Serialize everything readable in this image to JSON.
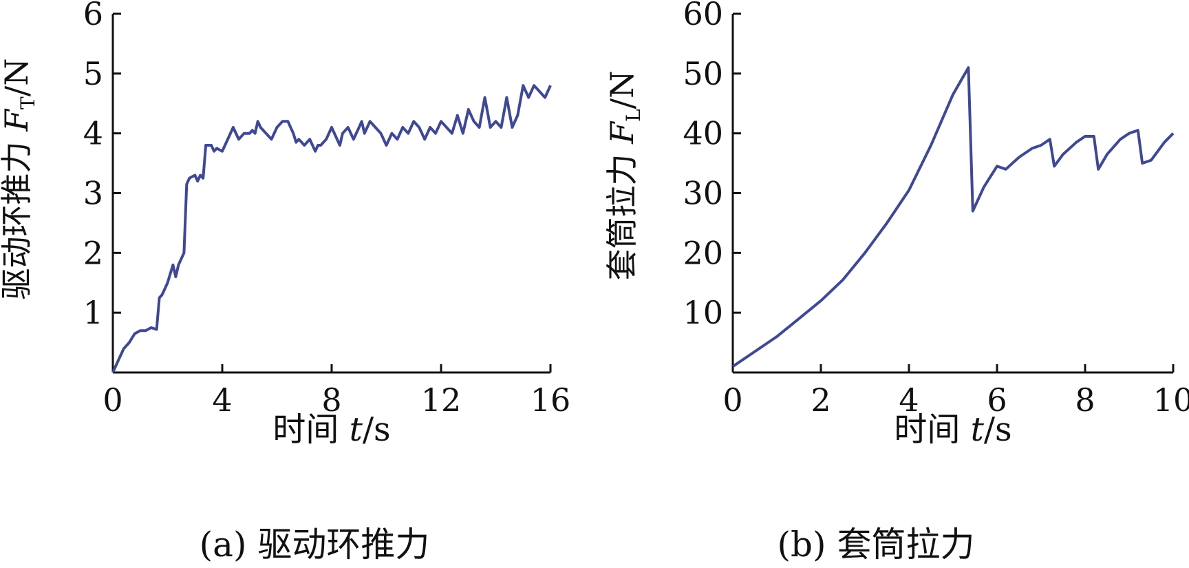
{
  "chart_data": [
    {
      "type": "line",
      "caption": "(a) 驱动环推力",
      "xlabel_cn": "时间",
      "xlabel_var": "t",
      "xlabel_unit": "/s",
      "ylabel_cn": "驱动环推力",
      "ylabel_var": "F",
      "ylabel_sub": "T",
      "ylabel_unit": "/N",
      "xlim": [
        0,
        16
      ],
      "ylim": [
        0,
        6
      ],
      "xticks": [
        0,
        4,
        8,
        12,
        16
      ],
      "yticks": [
        1,
        2,
        3,
        4,
        5,
        6
      ],
      "grid": false,
      "color": "#3f4896",
      "x": [
        0.0,
        0.2,
        0.4,
        0.6,
        0.8,
        1.0,
        1.2,
        1.4,
        1.6,
        1.7,
        1.8,
        2.0,
        2.2,
        2.3,
        2.4,
        2.6,
        2.7,
        2.8,
        3.0,
        3.1,
        3.2,
        3.3,
        3.4,
        3.6,
        3.7,
        3.8,
        4.0,
        4.1,
        4.2,
        4.4,
        4.6,
        4.8,
        5.0,
        5.1,
        5.2,
        5.3,
        5.4,
        5.6,
        5.8,
        6.0,
        6.2,
        6.4,
        6.6,
        6.7,
        6.8,
        7.0,
        7.2,
        7.4,
        7.5,
        7.6,
        7.8,
        8.0,
        8.2,
        8.3,
        8.4,
        8.6,
        8.8,
        9.0,
        9.1,
        9.2,
        9.4,
        9.6,
        9.8,
        10.0,
        10.1,
        10.2,
        10.4,
        10.6,
        10.8,
        11.0,
        11.2,
        11.4,
        11.6,
        11.8,
        12.0,
        12.2,
        12.4,
        12.6,
        12.8,
        13.0,
        13.2,
        13.4,
        13.6,
        13.8,
        14.0,
        14.2,
        14.4,
        14.6,
        14.8,
        15.0,
        15.2,
        15.4,
        15.6,
        15.8,
        16.0
      ],
      "y": [
        0.0,
        0.2,
        0.4,
        0.5,
        0.65,
        0.7,
        0.7,
        0.75,
        0.72,
        1.25,
        1.3,
        1.5,
        1.8,
        1.6,
        1.8,
        2.0,
        3.15,
        3.25,
        3.3,
        3.2,
        3.3,
        3.25,
        3.8,
        3.8,
        3.7,
        3.75,
        3.7,
        3.8,
        3.9,
        4.1,
        3.9,
        4.0,
        4.0,
        4.05,
        4.0,
        4.2,
        4.1,
        4.0,
        3.9,
        4.1,
        4.2,
        4.2,
        4.0,
        3.85,
        3.9,
        3.8,
        3.9,
        3.7,
        3.8,
        3.8,
        3.9,
        4.1,
        3.9,
        3.8,
        4.0,
        4.1,
        3.9,
        4.1,
        4.2,
        4.0,
        4.2,
        4.1,
        4.0,
        3.8,
        3.9,
        4.0,
        3.9,
        4.1,
        4.0,
        4.2,
        4.1,
        3.9,
        4.1,
        4.0,
        4.2,
        4.1,
        4.0,
        4.3,
        4.0,
        4.4,
        4.2,
        4.1,
        4.6,
        4.1,
        4.2,
        4.1,
        4.6,
        4.1,
        4.3,
        4.8,
        4.6,
        4.8,
        4.7,
        4.6,
        4.8
      ]
    },
    {
      "type": "line",
      "caption": "(b) 套筒拉力",
      "xlabel_cn": "时间",
      "xlabel_var": "t",
      "xlabel_unit": "/s",
      "ylabel_cn": "套筒拉力",
      "ylabel_var": "F",
      "ylabel_sub": "L",
      "ylabel_unit": "/N",
      "xlim": [
        0,
        10
      ],
      "ylim": [
        0,
        60
      ],
      "xticks": [
        0,
        2,
        4,
        6,
        8,
        10
      ],
      "yticks": [
        10,
        20,
        30,
        40,
        50,
        60
      ],
      "grid": false,
      "color": "#3f4896",
      "x": [
        0.0,
        0.5,
        1.0,
        1.5,
        2.0,
        2.5,
        3.0,
        3.5,
        4.0,
        4.5,
        5.0,
        5.35,
        5.45,
        5.7,
        6.0,
        6.2,
        6.5,
        6.8,
        7.0,
        7.2,
        7.3,
        7.5,
        7.8,
        8.0,
        8.2,
        8.3,
        8.5,
        8.8,
        9.0,
        9.2,
        9.3,
        9.5,
        9.8,
        10.0
      ],
      "y": [
        1.0,
        3.5,
        6.0,
        9.0,
        12.0,
        15.5,
        20.0,
        25.0,
        30.5,
        38.0,
        46.5,
        51.0,
        27.0,
        31.0,
        34.5,
        34.0,
        36.0,
        37.5,
        38.0,
        39.0,
        34.5,
        36.5,
        38.5,
        39.5,
        39.5,
        34.0,
        36.5,
        39.0,
        40.0,
        40.5,
        35.0,
        35.5,
        38.5,
        40.0
      ]
    }
  ]
}
